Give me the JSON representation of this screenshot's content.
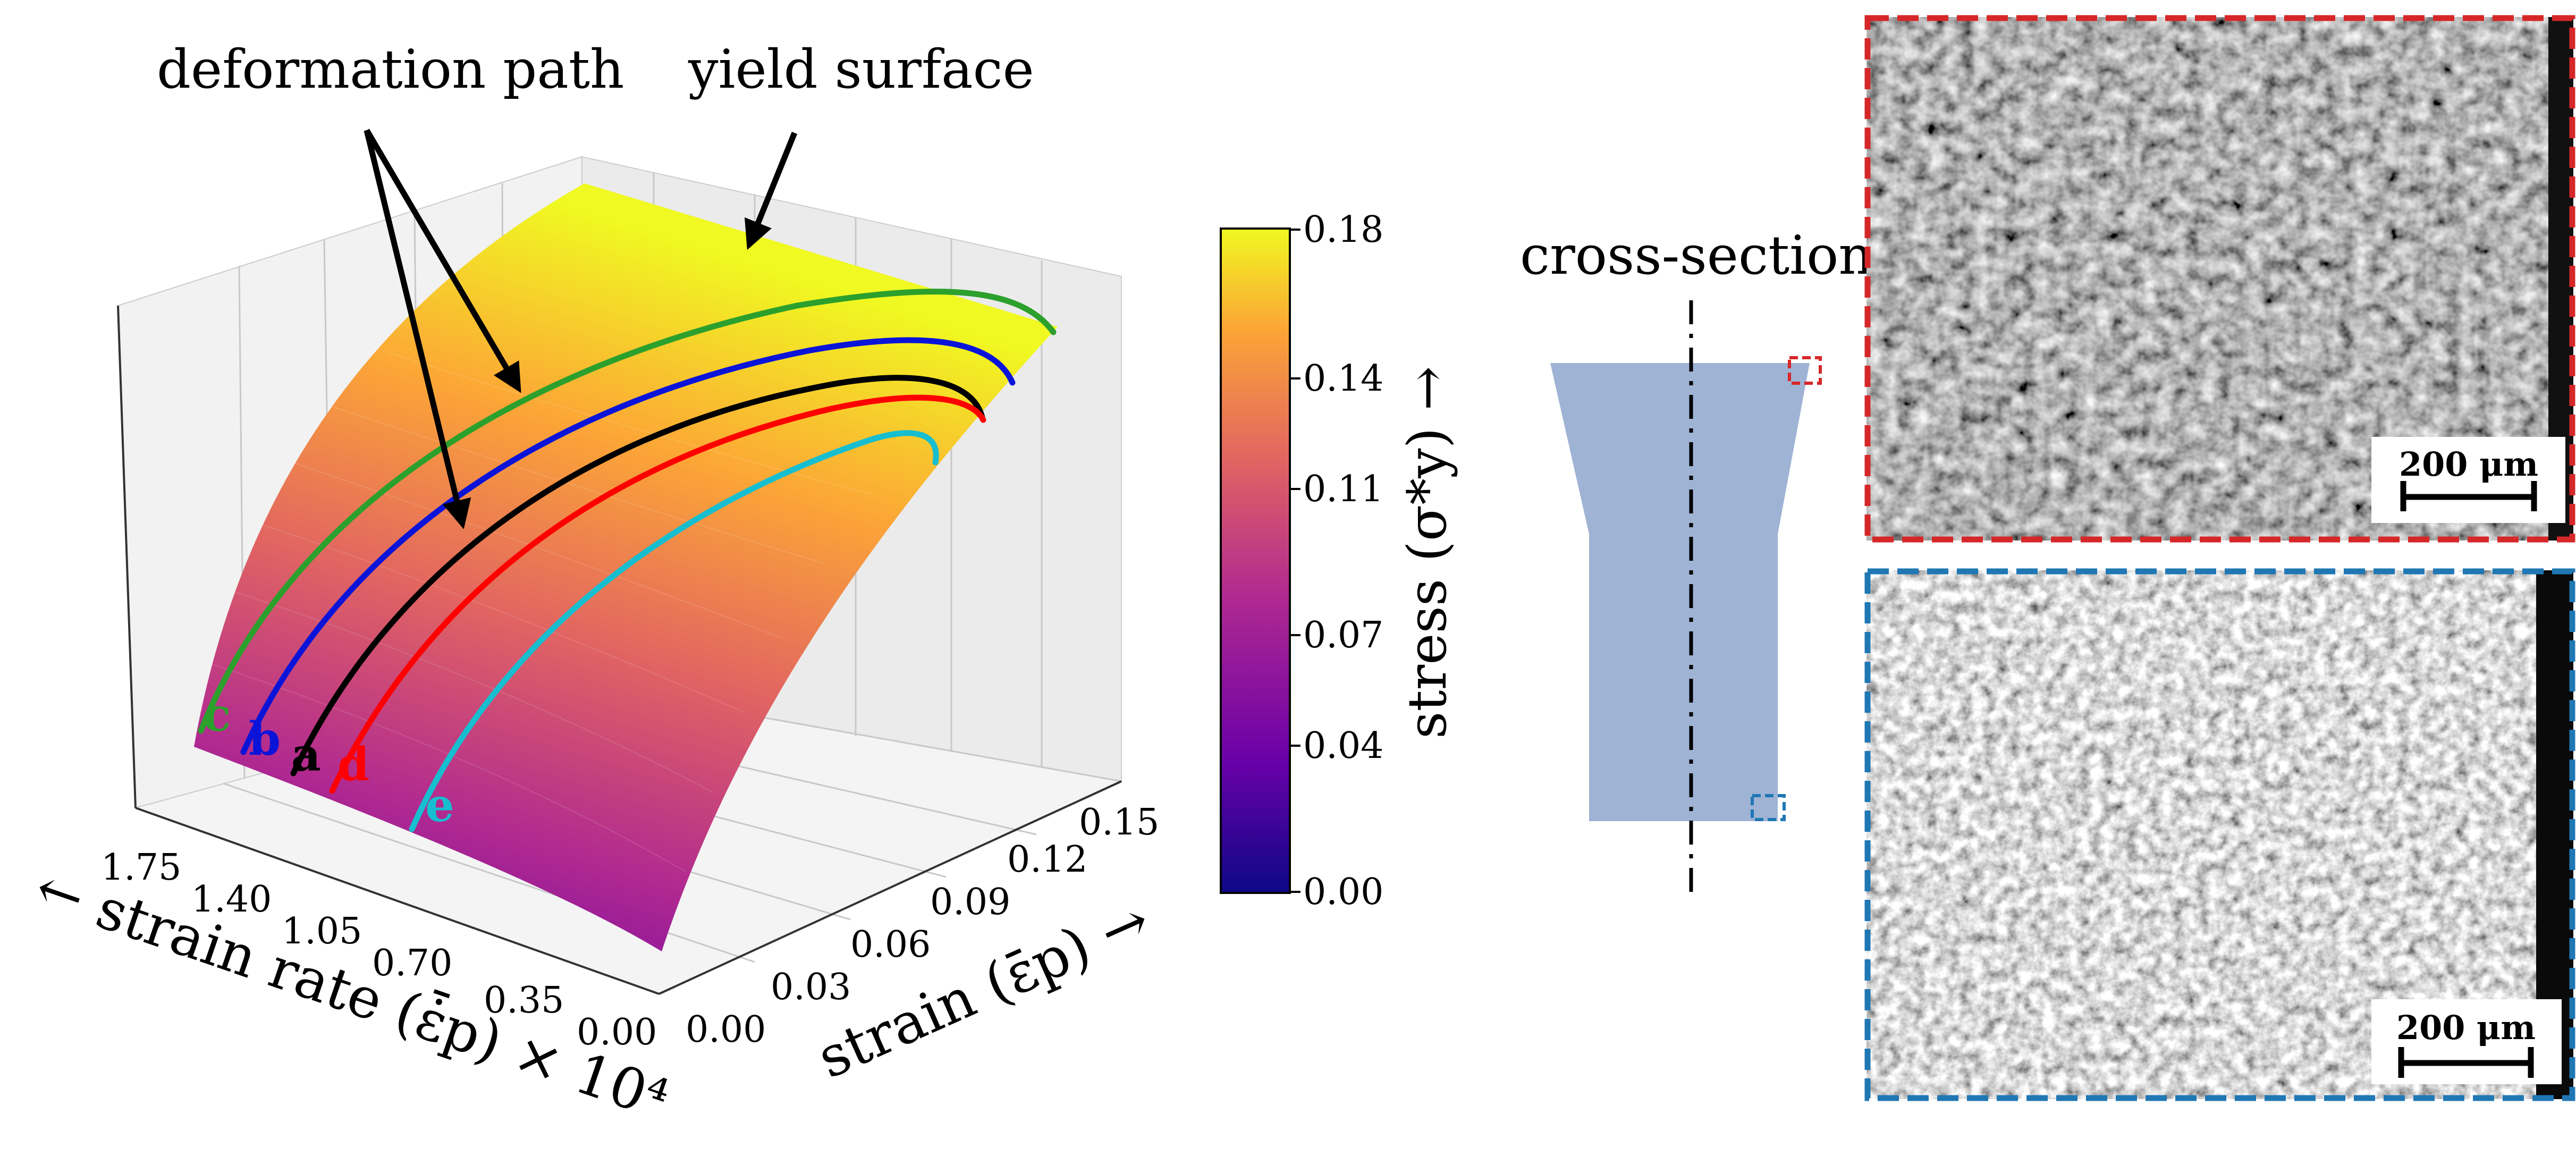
{
  "figure": {
    "annotations": {
      "deformation_path": "deformation path",
      "yield_surface": "yield surface"
    },
    "axes": {
      "strain_rate_label": "← strain rate (ε̇̄p) × 10⁴",
      "strain_label": "strain (ε̄p) →",
      "strain_rate_ticks": [
        "1.75",
        "1.40",
        "1.05",
        "0.70",
        "0.35",
        "0.00"
      ],
      "strain_ticks": [
        "0.00",
        "0.03",
        "0.06",
        "0.09",
        "0.12",
        "0.15"
      ]
    },
    "colorbar": {
      "label": "stress (σ*y) →",
      "ticks": [
        "0.18",
        "0.14",
        "0.11",
        "0.07",
        "0.04",
        "0.00"
      ],
      "gradient": [
        "#0d0887",
        "#6a00a8",
        "#b12a90",
        "#e16462",
        "#fca636",
        "#f0f921"
      ]
    },
    "paths": [
      {
        "label": "c",
        "color": "#2ca02c"
      },
      {
        "label": "b",
        "color": "#0a14d8"
      },
      {
        "label": "a",
        "color": "#000000"
      },
      {
        "label": "d",
        "color": "#ff0000"
      },
      {
        "label": "e",
        "color": "#17becf"
      }
    ],
    "cross_section": {
      "title": "cross-section",
      "fill": "#9fb3d4"
    },
    "micrographs": {
      "top": {
        "scale": "200 μm",
        "frame_color": "#d62728"
      },
      "bottom": {
        "scale": "200 μm",
        "frame_color": "#1f77b4"
      }
    }
  }
}
